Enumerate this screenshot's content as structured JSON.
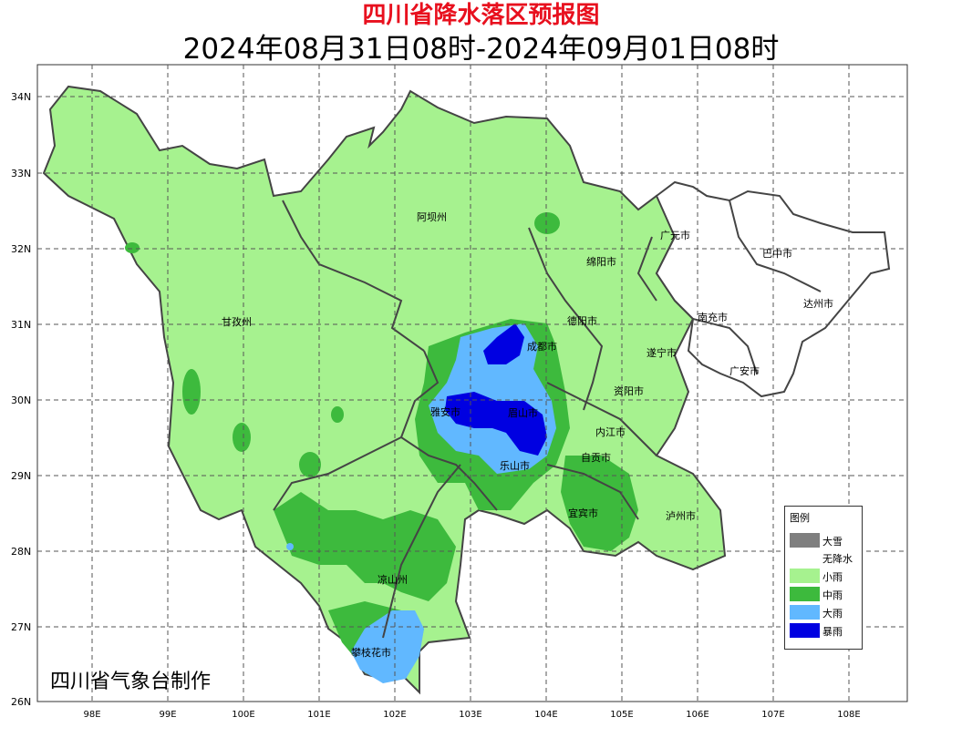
{
  "header": {
    "title": "四川省降水落区预报图",
    "subtitle": "2024年08月31日08时-2024年09月01日08时"
  },
  "axes": {
    "y_ticks": [
      "34N",
      "33N",
      "32N",
      "31N",
      "30N",
      "29N",
      "28N",
      "27N",
      "26N"
    ],
    "x_ticks": [
      "98E",
      "99E",
      "100E",
      "101E",
      "102E",
      "103E",
      "104E",
      "105E",
      "106E",
      "107E",
      "108E"
    ]
  },
  "cities": [
    {
      "name": "阿坝州"
    },
    {
      "name": "甘孜州"
    },
    {
      "name": "广元市"
    },
    {
      "name": "巴中市"
    },
    {
      "name": "绵阳市"
    },
    {
      "name": "达州市"
    },
    {
      "name": "南充市"
    },
    {
      "name": "德阳市"
    },
    {
      "name": "成都市"
    },
    {
      "name": "遂宁市"
    },
    {
      "name": "广安市"
    },
    {
      "name": "资阳市"
    },
    {
      "name": "雅安市"
    },
    {
      "name": "眉山市"
    },
    {
      "name": "内江市"
    },
    {
      "name": "自贡市"
    },
    {
      "name": "乐山市"
    },
    {
      "name": "宜宾市"
    },
    {
      "name": "泸州市"
    },
    {
      "name": "凉山州"
    },
    {
      "name": "攀枝花市"
    }
  ],
  "legend": {
    "title": "图例",
    "items": [
      {
        "label": "大雪",
        "color": "#7f7f7f"
      },
      {
        "label": "无降水",
        "color": "#ffffff"
      },
      {
        "label": "小雨",
        "color": "#a6f28f"
      },
      {
        "label": "中雨",
        "color": "#3dba3d"
      },
      {
        "label": "大雨",
        "color": "#61b8ff"
      },
      {
        "label": "暴雨",
        "color": "#0000e1"
      }
    ]
  },
  "footer": {
    "credit": "四川省气象台制作"
  }
}
